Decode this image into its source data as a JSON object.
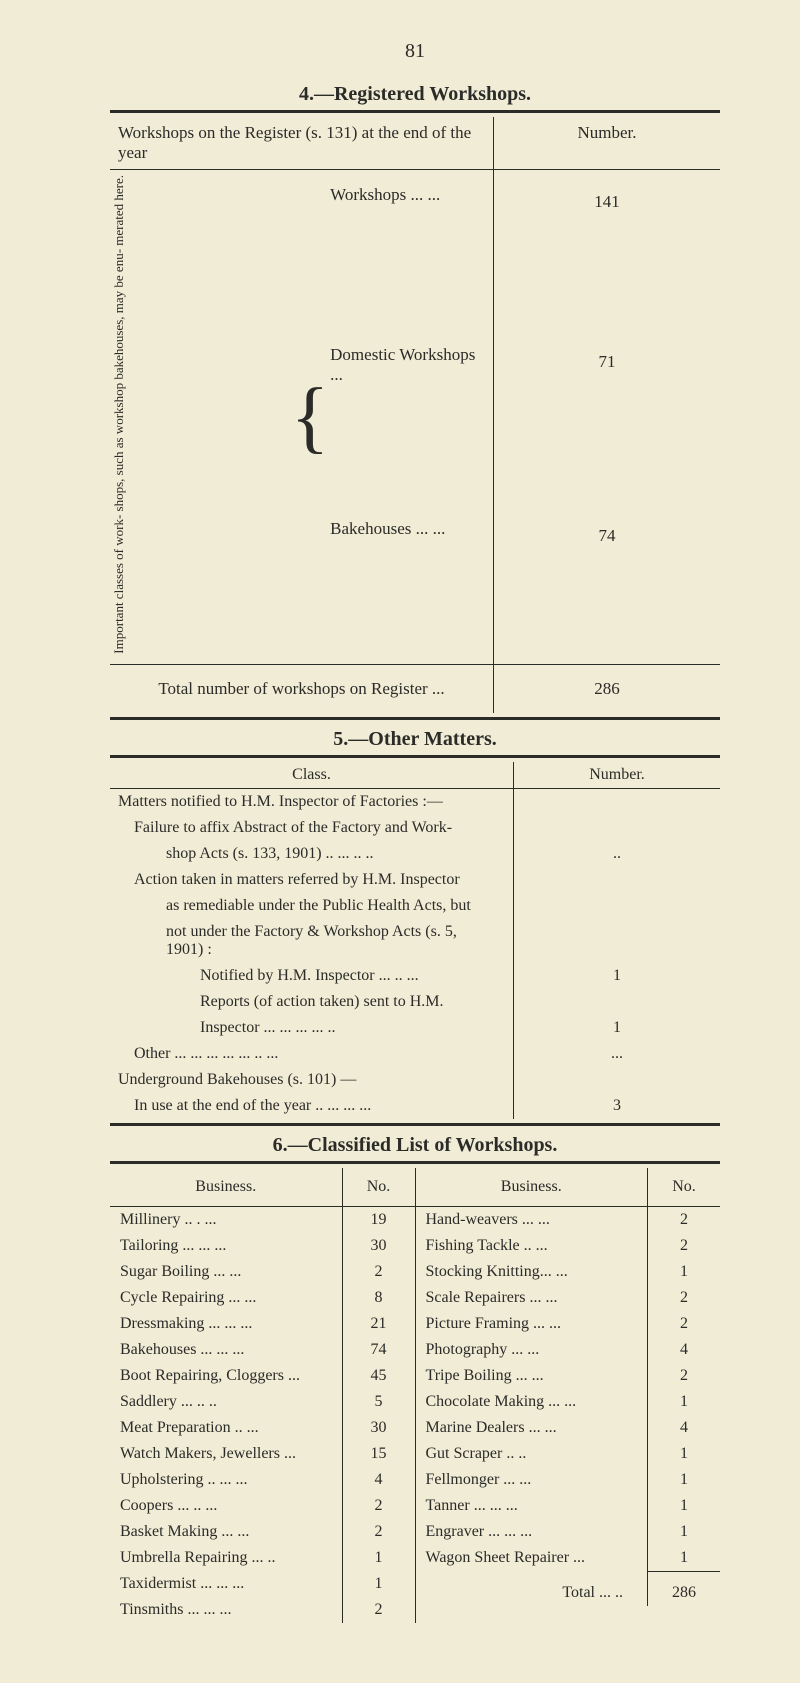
{
  "page_number": "81",
  "section4": {
    "heading": "4.—Registered Workshops.",
    "header_left": "Workshops on the Register (s. 131) at the end of the year",
    "header_right": "Number.",
    "side_label": "Important classes of work-\nshops, such as workshop\nbakehouses, may be enu-\nmerated here.",
    "rows": [
      {
        "label": "Workshops  ...         ...",
        "value": "141"
      },
      {
        "label": "Domestic Workshops ...",
        "value": "71"
      },
      {
        "label": "Bakehouses ...         ...",
        "value": "74"
      }
    ],
    "total_label": "Total number of workshops on Register ...",
    "total_value": "286"
  },
  "section5": {
    "heading": "5.—Other Matters.",
    "header_left": "Class.",
    "header_right": "Number.",
    "lines": [
      {
        "text": "Matters notified to H.M. Inspector of Factories :—",
        "indent": 0,
        "value": ""
      },
      {
        "text": "Failure to affix Abstract of the Factory and Work-",
        "indent": 1,
        "value": ""
      },
      {
        "text": "shop Acts (s. 133, 1901)        ..    ...     ..     ..",
        "indent": 2,
        "value": ".."
      },
      {
        "text": "Action taken in matters referred by H.M. Inspector",
        "indent": 1,
        "value": ""
      },
      {
        "text": "as remediable under the Public Health Acts, but",
        "indent": 2,
        "value": ""
      },
      {
        "text": "not under the Factory & Workshop Acts (s. 5, 1901) :",
        "indent": 2,
        "value": ""
      },
      {
        "text": "Notified by H.M. Inspector ...     ..     ...",
        "indent": 3,
        "value": "1"
      },
      {
        "text": "Reports (of action taken) sent to H.M.",
        "indent": 3,
        "value": ""
      },
      {
        "text": "Inspector       ...    ...     ...     ...    ..",
        "indent": 3,
        "value": "1"
      },
      {
        "text": "Other       ...     ...     ...     ...     ...     ..     ...",
        "indent": 1,
        "value": "..."
      },
      {
        "text": "Underground Bakehouses (s. 101) —",
        "indent": 0,
        "value": ""
      },
      {
        "text": "In use at the end of the year ..     ...     ...     ...",
        "indent": 1,
        "value": "3"
      }
    ]
  },
  "section6": {
    "heading": "6.—Classified List of Workshops.",
    "header_business": "Business.",
    "header_no": "No.",
    "left": [
      {
        "b": "Millinery       ..      .     ...",
        "n": "19"
      },
      {
        "b": "Tailoring       ...     ...     ...",
        "n": "30"
      },
      {
        "b": "Sugar Boiling       ...     ...",
        "n": "2"
      },
      {
        "b": "Cycle Repairing       ...     ...",
        "n": "8"
      },
      {
        "b": "Dressmaking ...     ...     ...",
        "n": "21"
      },
      {
        "b": "Bakehouses   ...     ...     ...",
        "n": "74"
      },
      {
        "b": "Boot Repairing, Cloggers   ...",
        "n": "45"
      },
      {
        "b": "Saddlery       ...     ..     ..",
        "n": "5"
      },
      {
        "b": "Meat Preparation     ..     ...",
        "n": "30"
      },
      {
        "b": "Watch Makers, Jewellers   ...",
        "n": "15"
      },
      {
        "b": "Upholstering ..     ...     ...",
        "n": "4"
      },
      {
        "b": "Coopers         ...     ..     ...",
        "n": "2"
      },
      {
        "b": "Basket Making       ...     ...",
        "n": "2"
      },
      {
        "b": "Umbrella Repairing ...     ..",
        "n": "1"
      },
      {
        "b": "Taxidermist ...     ...     ...",
        "n": "1"
      },
      {
        "b": "Tinsmiths       ...     ...     ...",
        "n": "2"
      }
    ],
    "right": [
      {
        "b": "Hand-weavers       ...     ...",
        "n": "2"
      },
      {
        "b": "Fishing Tackle       ..     ...",
        "n": "2"
      },
      {
        "b": "Stocking Knitting...     ...",
        "n": "1"
      },
      {
        "b": "Scale Repairers     ...     ...",
        "n": "2"
      },
      {
        "b": "Picture Framing   ...     ...",
        "n": "2"
      },
      {
        "b": "Photography         ...     ...",
        "n": "4"
      },
      {
        "b": "Tripe Boiling       ...     ...",
        "n": "2"
      },
      {
        "b": "Chocolate Making ...     ...",
        "n": "1"
      },
      {
        "b": "Marine Dealers     ...     ...",
        "n": "4"
      },
      {
        "b": "Gut Scraper           ..     ..",
        "n": "1"
      },
      {
        "b": "Fellmonger           ...     ...",
        "n": "1"
      },
      {
        "b": "Tanner         ...     ...     ...",
        "n": "1"
      },
      {
        "b": "Engraver ...     ...     ...",
        "n": "1"
      },
      {
        "b": "Wagon Sheet Repairer   ...",
        "n": "1"
      }
    ],
    "total_label": "Total ...     ..",
    "total_value": "286"
  },
  "colors": {
    "background": "#f0ecd6",
    "ink": "#2b2b28"
  }
}
